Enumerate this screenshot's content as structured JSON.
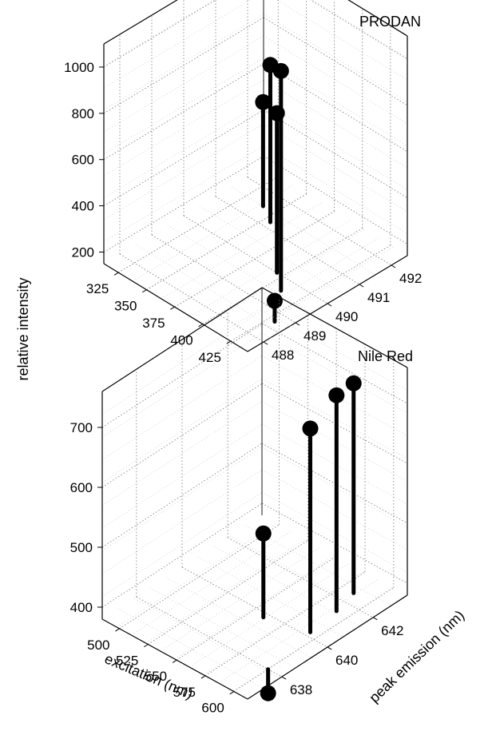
{
  "ylabel": "relative intensity",
  "xlabel": "excitation (nm)",
  "zlabel": "peak emission (nm)",
  "chart_data": [
    {
      "type": "3d-stem",
      "title": "PRODAN",
      "xlabel": "excitation (nm)",
      "ylabel": "relative intensity",
      "zlabel": "peak emission (nm)",
      "xticks": [
        325,
        350,
        375,
        400,
        425
      ],
      "yticks": [
        488,
        489,
        490,
        491,
        492
      ],
      "zticks": [
        200,
        400,
        600,
        800,
        1000
      ],
      "xlim": [
        312,
        440
      ],
      "ylim": [
        487.5,
        492.5
      ],
      "zlim": [
        150,
        1100
      ],
      "grid": true,
      "points": [
        {
          "excitation": 340,
          "emission": 491.5,
          "intensity": 600
        },
        {
          "excitation": 355,
          "emission": 491.2,
          "intensity": 830
        },
        {
          "excitation": 395,
          "emission": 490.0,
          "intensity": 840
        },
        {
          "excitation": 410,
          "emission": 489.6,
          "intensity": 1100
        },
        {
          "excitation": 430,
          "emission": 488.7,
          "intensity": 240
        }
      ]
    },
    {
      "type": "3d-stem",
      "title": "Nile Red",
      "xlabel": "excitation (nm)",
      "ylabel": "relative intensity",
      "zlabel": "peak emission (nm)",
      "xticks": [
        500,
        525,
        550,
        575,
        600
      ],
      "yticks": [
        638,
        640,
        642
      ],
      "zticks": [
        400,
        500,
        600,
        700
      ],
      "xlim": [
        485,
        612
      ],
      "ylim": [
        636.5,
        643.5
      ],
      "zlim": [
        380,
        760
      ],
      "grid": true,
      "points": [
        {
          "excitation": 585,
          "emission": 642.5,
          "intensity": 730
        },
        {
          "excitation": 590,
          "emission": 641.5,
          "intensity": 740
        },
        {
          "excitation": 593,
          "emission": 640.2,
          "intensity": 720
        },
        {
          "excitation": 560,
          "emission": 639.8,
          "intensity": 520
        },
        {
          "excitation": 600,
          "emission": 638.0,
          "intensity": 340
        }
      ]
    }
  ]
}
